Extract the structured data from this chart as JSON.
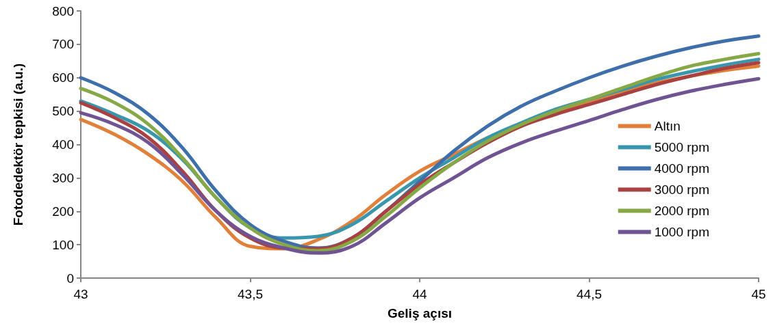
{
  "chart_data": {
    "type": "line",
    "xlabel": "Geliş açısı",
    "ylabel": "Fotodedektör tepkisi (a.u.)",
    "x": [
      43,
      43.1,
      43.2,
      43.3,
      43.4,
      43.5,
      43.6,
      43.7,
      43.8,
      43.9,
      44,
      44.1,
      44.2,
      44.3,
      44.4,
      44.5,
      44.6,
      44.7,
      44.8,
      44.9,
      45
    ],
    "series": [
      {
        "name": "Altın",
        "color": "#e0803a",
        "values": [
          475,
          430,
          370,
          290,
          180,
          95,
          88,
          115,
          170,
          250,
          320,
          370,
          420,
          460,
          495,
          530,
          560,
          585,
          605,
          622,
          635
        ]
      },
      {
        "name": "5000 rpm",
        "color": "#3a96ad",
        "values": [
          530,
          490,
          440,
          355,
          240,
          150,
          120,
          125,
          160,
          230,
          300,
          360,
          420,
          465,
          505,
          535,
          565,
          595,
          618,
          638,
          655
        ]
      },
      {
        "name": "4000 rpm",
        "color": "#3f6faa",
        "values": [
          600,
          555,
          490,
          390,
          260,
          160,
          110,
          90,
          120,
          200,
          290,
          380,
          455,
          515,
          560,
          600,
          635,
          665,
          690,
          710,
          725
        ]
      },
      {
        "name": "3000 rpm",
        "color": "#a8413f",
        "values": [
          525,
          480,
          420,
          320,
          200,
          120,
          90,
          88,
          120,
          200,
          280,
          345,
          405,
          455,
          490,
          520,
          550,
          580,
          605,
          628,
          645
        ]
      },
      {
        "name": "2000 rpm",
        "color": "#86a846",
        "values": [
          568,
          525,
          460,
          360,
          240,
          150,
          100,
          82,
          110,
          185,
          270,
          345,
          410,
          460,
          500,
          535,
          570,
          605,
          635,
          655,
          672
        ]
      },
      {
        "name": "1000 rpm",
        "color": "#6f5393",
        "values": [
          495,
          460,
          405,
          310,
          200,
          125,
          90,
          75,
          95,
          165,
          240,
          300,
          360,
          405,
          440,
          472,
          505,
          535,
          560,
          580,
          597
        ]
      }
    ],
    "xlim": [
      43,
      45
    ],
    "xticks": [
      43,
      {
        "value": 43.5,
        "label": "43,5"
      },
      44,
      {
        "value": 44.5,
        "label": "44,5"
      },
      45
    ],
    "ylim": [
      0,
      800
    ],
    "yticks": [
      0,
      100,
      200,
      300,
      400,
      500,
      600,
      700,
      800
    ],
    "grid": false,
    "legend": "right",
    "marker": "none",
    "line_style": "solid"
  }
}
